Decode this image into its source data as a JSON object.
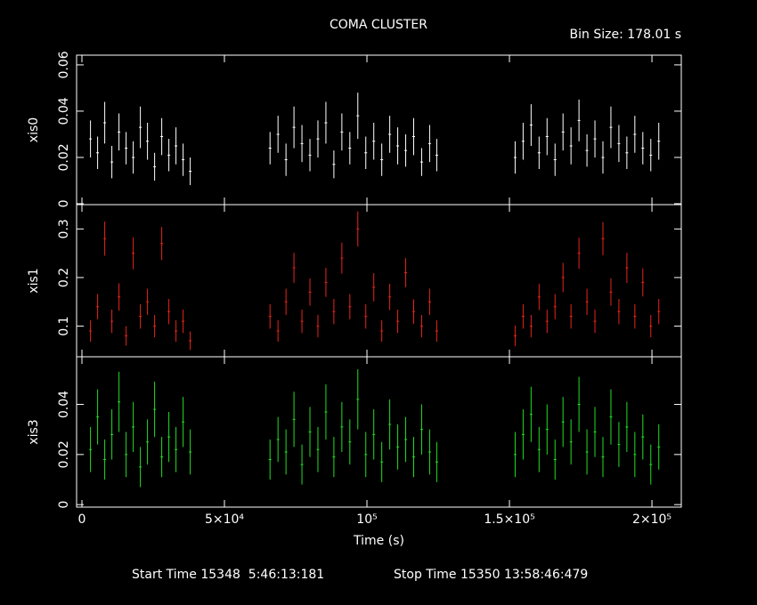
{
  "title": "COMA CLUSTER",
  "bin_size": "Bin Size: 178.01 s",
  "start_time": "Start Time 15348  5:46:13:181",
  "stop_time": "Stop Time 15350 13:58:46:479",
  "chart_data": [
    {
      "type": "errorbar",
      "ylabel": "xis0",
      "color": "#ffffff",
      "xlim": [
        -1875,
        210300
      ],
      "ylim": [
        -0.0004,
        0.0642
      ],
      "yticks": [
        0,
        0.02,
        0.04,
        0.06
      ],
      "x": [
        3000,
        5500,
        8000,
        10500,
        13000,
        15500,
        18000,
        20500,
        23000,
        25500,
        28000,
        30500,
        33000,
        35500,
        38000,
        66000,
        68800,
        71600,
        74400,
        77200,
        80000,
        82800,
        85600,
        88400,
        91200,
        94000,
        96800,
        99600,
        102400,
        105200,
        108000,
        110800,
        113600,
        116400,
        119200,
        122000,
        124500,
        152000,
        154800,
        157600,
        160400,
        163200,
        166000,
        168800,
        171600,
        174400,
        177200,
        180000,
        182800,
        185600,
        188400,
        191200,
        194000,
        196800,
        199600,
        202400
      ],
      "values": [
        0.028,
        0.022,
        0.035,
        0.018,
        0.031,
        0.024,
        0.02,
        0.033,
        0.027,
        0.016,
        0.029,
        0.021,
        0.025,
        0.019,
        0.014,
        0.024,
        0.03,
        0.019,
        0.033,
        0.026,
        0.021,
        0.028,
        0.035,
        0.017,
        0.031,
        0.024,
        0.038,
        0.022,
        0.027,
        0.019,
        0.03,
        0.025,
        0.023,
        0.029,
        0.018,
        0.026,
        0.021,
        0.02,
        0.027,
        0.034,
        0.022,
        0.029,
        0.019,
        0.031,
        0.025,
        0.036,
        0.023,
        0.028,
        0.02,
        0.033,
        0.026,
        0.022,
        0.03,
        0.024,
        0.021,
        0.027
      ],
      "errors": [
        0.008,
        0.007,
        0.009,
        0.007,
        0.008,
        0.007,
        0.007,
        0.009,
        0.008,
        0.006,
        0.008,
        0.007,
        0.008,
        0.007,
        0.006,
        0.007,
        0.008,
        0.007,
        0.009,
        0.008,
        0.007,
        0.008,
        0.009,
        0.006,
        0.008,
        0.007,
        0.01,
        0.007,
        0.008,
        0.007,
        0.008,
        0.008,
        0.007,
        0.008,
        0.006,
        0.008,
        0.007,
        0.007,
        0.008,
        0.009,
        0.007,
        0.008,
        0.007,
        0.008,
        0.008,
        0.009,
        0.007,
        0.008,
        0.007,
        0.009,
        0.008,
        0.007,
        0.008,
        0.007,
        0.007,
        0.008
      ]
    },
    {
      "type": "errorbar",
      "ylabel": "xis1",
      "color": "#e8231a",
      "xlim": [
        -1875,
        210300
      ],
      "ylim": [
        0.037,
        0.35
      ],
      "yticks": [
        0.1,
        0.2,
        0.3
      ],
      "x": [
        3000,
        5500,
        8000,
        10500,
        13000,
        15500,
        18000,
        20500,
        23000,
        25500,
        28000,
        30500,
        33000,
        35500,
        38000,
        66000,
        68800,
        71600,
        74400,
        77200,
        80000,
        82800,
        85600,
        88400,
        91200,
        94000,
        96800,
        99600,
        102400,
        105200,
        108000,
        110800,
        113600,
        116400,
        119200,
        122000,
        124500,
        152000,
        154800,
        157600,
        160400,
        163200,
        166000,
        168800,
        171600,
        174400,
        177200,
        180000,
        182800,
        185600,
        188400,
        191200,
        194000,
        196800,
        199600,
        202400
      ],
      "values": [
        0.09,
        0.14,
        0.28,
        0.11,
        0.16,
        0.08,
        0.25,
        0.12,
        0.15,
        0.1,
        0.27,
        0.13,
        0.09,
        0.11,
        0.07,
        0.12,
        0.09,
        0.15,
        0.22,
        0.11,
        0.17,
        0.1,
        0.19,
        0.13,
        0.24,
        0.14,
        0.3,
        0.12,
        0.18,
        0.09,
        0.16,
        0.11,
        0.21,
        0.13,
        0.1,
        0.15,
        0.09,
        0.08,
        0.12,
        0.1,
        0.16,
        0.11,
        0.14,
        0.2,
        0.12,
        0.25,
        0.15,
        0.11,
        0.28,
        0.17,
        0.13,
        0.22,
        0.12,
        0.19,
        0.1,
        0.13
      ],
      "errors": [
        0.022,
        0.026,
        0.035,
        0.024,
        0.028,
        0.02,
        0.033,
        0.025,
        0.027,
        0.023,
        0.034,
        0.026,
        0.022,
        0.024,
        0.019,
        0.025,
        0.022,
        0.027,
        0.031,
        0.024,
        0.028,
        0.023,
        0.03,
        0.026,
        0.032,
        0.026,
        0.036,
        0.025,
        0.029,
        0.022,
        0.027,
        0.024,
        0.03,
        0.025,
        0.023,
        0.027,
        0.022,
        0.021,
        0.025,
        0.023,
        0.027,
        0.024,
        0.026,
        0.03,
        0.025,
        0.032,
        0.027,
        0.024,
        0.034,
        0.028,
        0.026,
        0.031,
        0.025,
        0.029,
        0.023,
        0.026
      ]
    },
    {
      "type": "errorbar",
      "ylabel": "xis3",
      "color": "#22dd22",
      "xlabel": "Time (s)",
      "xlim": [
        -1875,
        210300
      ],
      "ylim": [
        -0.001,
        0.059
      ],
      "yticks": [
        0,
        0.02,
        0.04
      ],
      "xticks": [
        0,
        {
          "value": 50000,
          "label": "5×10⁴"
        },
        {
          "value": 100000,
          "label": "10⁵"
        },
        {
          "value": 150000,
          "label": "1.5×10⁵"
        },
        {
          "value": 200000,
          "label": "2×10⁵"
        }
      ],
      "x": [
        3000,
        5500,
        8000,
        10500,
        13000,
        15500,
        18000,
        20500,
        23000,
        25500,
        28000,
        30500,
        33000,
        35500,
        38000,
        66000,
        68800,
        71600,
        74400,
        77200,
        80000,
        82800,
        85600,
        88400,
        91200,
        94000,
        96800,
        99600,
        102400,
        105200,
        108000,
        110800,
        113600,
        116400,
        119200,
        122000,
        124500,
        152000,
        154800,
        157600,
        160400,
        163200,
        166000,
        168800,
        171600,
        174400,
        177200,
        180000,
        182800,
        185600,
        188400,
        191200,
        194000,
        196800,
        199600,
        202400
      ],
      "values": [
        0.022,
        0.035,
        0.018,
        0.028,
        0.041,
        0.02,
        0.031,
        0.015,
        0.025,
        0.038,
        0.019,
        0.027,
        0.022,
        0.033,
        0.021,
        0.018,
        0.026,
        0.021,
        0.034,
        0.016,
        0.029,
        0.022,
        0.037,
        0.019,
        0.031,
        0.025,
        0.042,
        0.02,
        0.028,
        0.017,
        0.032,
        0.023,
        0.026,
        0.019,
        0.03,
        0.021,
        0.017,
        0.02,
        0.028,
        0.036,
        0.022,
        0.03,
        0.018,
        0.033,
        0.025,
        0.04,
        0.021,
        0.029,
        0.019,
        0.035,
        0.024,
        0.031,
        0.02,
        0.027,
        0.016,
        0.023
      ],
      "errors": [
        0.009,
        0.011,
        0.008,
        0.01,
        0.012,
        0.009,
        0.01,
        0.008,
        0.009,
        0.011,
        0.008,
        0.01,
        0.009,
        0.01,
        0.009,
        0.008,
        0.009,
        0.009,
        0.011,
        0.008,
        0.01,
        0.009,
        0.011,
        0.008,
        0.01,
        0.009,
        0.012,
        0.009,
        0.01,
        0.008,
        0.01,
        0.009,
        0.009,
        0.008,
        0.01,
        0.009,
        0.008,
        0.009,
        0.01,
        0.011,
        0.009,
        0.01,
        0.008,
        0.01,
        0.009,
        0.011,
        0.009,
        0.01,
        0.008,
        0.011,
        0.009,
        0.01,
        0.009,
        0.009,
        0.008,
        0.009
      ]
    }
  ]
}
